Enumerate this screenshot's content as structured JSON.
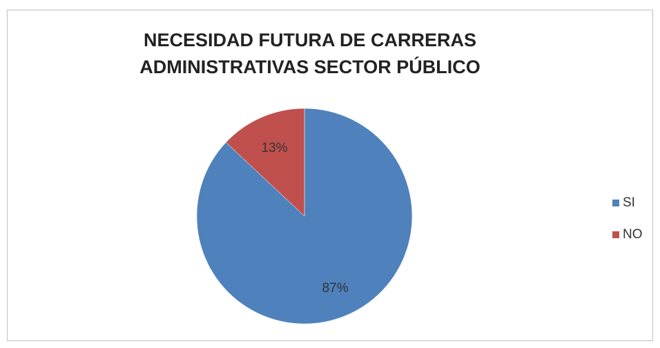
{
  "chart_data": {
    "type": "pie",
    "title": [
      "NECESIDAD FUTURA DE CARRERAS",
      "ADMINISTRATIVAS SECTOR PÚBLICO"
    ],
    "categories": [
      "SI",
      "NO"
    ],
    "values": [
      87,
      13
    ],
    "value_labels": [
      "87%",
      "13%"
    ],
    "colors": [
      "#4F81BD",
      "#C0504D"
    ],
    "legend_position": "right"
  }
}
